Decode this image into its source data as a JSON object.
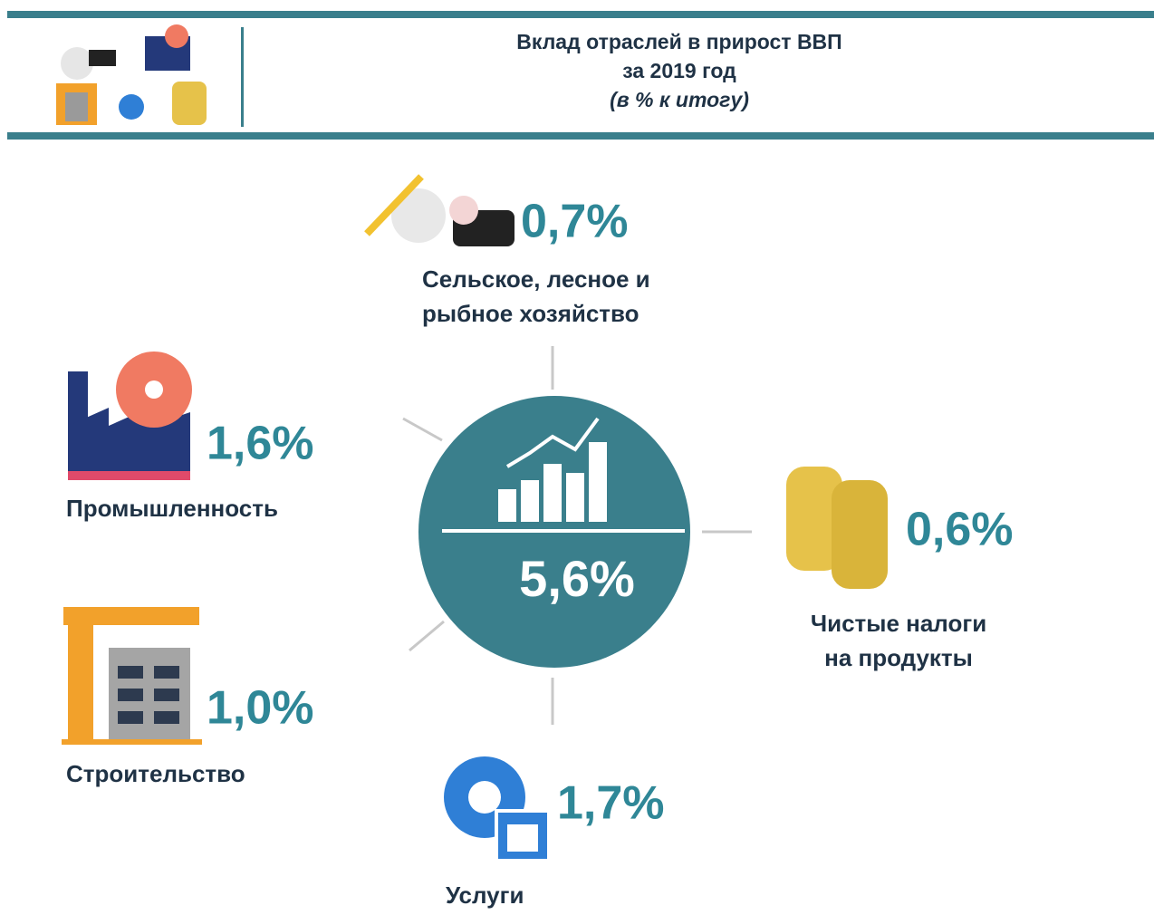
{
  "header": {
    "title": "Вклад отраслей в прирост ВВП",
    "subtitle": "за 2019 год",
    "note": "(в % к итогу)"
  },
  "center": {
    "value": "5,6%"
  },
  "sectors": [
    {
      "value": "0,7%",
      "label": [
        "Сельское, лесное и",
        "рыбное хозяйство"
      ]
    },
    {
      "value": "1,6%",
      "label": [
        "Промышленность"
      ]
    },
    {
      "value": "1,0%",
      "label": [
        "Строительство"
      ]
    },
    {
      "value": "0,6%",
      "label": [
        "Чистые налоги",
        "на продукты"
      ]
    },
    {
      "value": "1,7%",
      "label": [
        "Услуги"
      ]
    }
  ]
}
